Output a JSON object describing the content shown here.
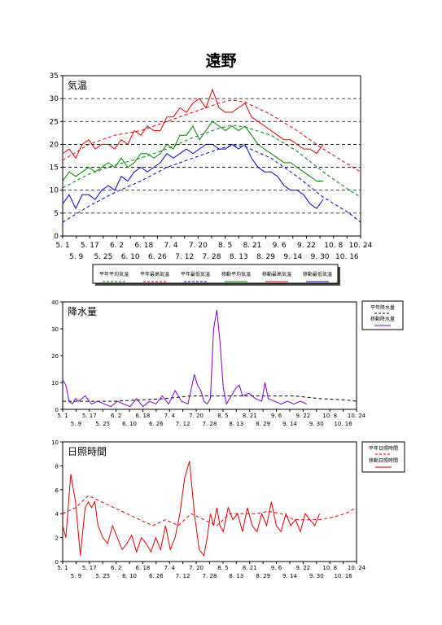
{
  "page_title": "遠野",
  "colors": {
    "normal_avg": "#008000",
    "normal_max": "#e00000",
    "normal_min": "#0000cc",
    "moving_avg": "#008000",
    "moving_max": "#e00000",
    "moving_min": "#0000cc",
    "precip_normal": "#000000",
    "precip_moving": "#7a00c8",
    "sun_normal": "#e00000",
    "sun_moving": "#e00000",
    "grid": "#000000"
  },
  "chart_data": [
    {
      "type": "line",
      "title": "気温",
      "ylim": [
        0,
        35
      ],
      "y_ticks": [
        "0",
        "5",
        "10",
        "15",
        "20",
        "25",
        "30",
        "35"
      ],
      "grid": "dashed horizontal",
      "x_ticks_row1": [
        "5. 1",
        "5. 17",
        "6. 2",
        "6. 18",
        "7. 4",
        "7. 20",
        "8. 5",
        "8. 21",
        "9. 6",
        "9. 22",
        "10. 8",
        "10. 24"
      ],
      "x_ticks_row2": [
        "5. 9",
        "5. 25",
        "6. 10",
        "6. 26",
        "7. 12",
        "7. 28",
        "8. 13",
        "8. 29",
        "9. 14",
        "9. 30",
        "10. 16"
      ],
      "legend_placement": "bottom",
      "series": [
        {
          "name": "平年平均気温",
          "style": "dashed",
          "x": [
            0,
            16,
            32,
            48,
            64,
            80,
            96,
            104,
            112,
            128,
            144,
            160,
            176,
            183
          ],
          "values": [
            10.5,
            13.5,
            15.5,
            17,
            19,
            21.5,
            23.5,
            24.2,
            23.8,
            22,
            18.5,
            14,
            10,
            8.5
          ]
        },
        {
          "name": "平年最高気温",
          "style": "dashed",
          "x": [
            0,
            16,
            32,
            48,
            64,
            80,
            96,
            104,
            112,
            128,
            144,
            160,
            176,
            183
          ],
          "values": [
            16.5,
            20,
            22,
            23,
            25,
            27,
            29,
            29.7,
            29.2,
            26.5,
            23,
            19,
            15.5,
            14
          ]
        },
        {
          "name": "平年最低気温",
          "style": "dashed",
          "x": [
            0,
            16,
            32,
            48,
            64,
            80,
            96,
            104,
            112,
            128,
            144,
            160,
            176,
            183
          ],
          "values": [
            3,
            6.5,
            9.5,
            12,
            15,
            17,
            19,
            19.8,
            19.5,
            17,
            13,
            8.5,
            5,
            3
          ]
        },
        {
          "name": "移動平均気温",
          "style": "solid",
          "x": [
            0,
            4,
            8,
            12,
            16,
            20,
            24,
            28,
            32,
            36,
            40,
            44,
            48,
            52,
            56,
            60,
            64,
            68,
            72,
            76,
            80,
            84,
            88,
            92,
            96,
            100,
            104,
            108,
            112,
            116,
            120,
            124,
            128,
            132,
            136,
            140,
            144,
            148,
            152,
            156,
            160
          ],
          "values": [
            12,
            14,
            13,
            14,
            15,
            14,
            15,
            16,
            15,
            17,
            15,
            16,
            18,
            18,
            17,
            18,
            20,
            19,
            22,
            22,
            24,
            21,
            23,
            25,
            24,
            23,
            24,
            23,
            24,
            22,
            20,
            19,
            18,
            17,
            16,
            16,
            15,
            14,
            13,
            12,
            12
          ]
        },
        {
          "name": "移動最高気温",
          "style": "solid",
          "x": [
            0,
            4,
            8,
            12,
            16,
            20,
            24,
            28,
            32,
            36,
            40,
            44,
            48,
            52,
            56,
            60,
            64,
            68,
            72,
            76,
            80,
            84,
            88,
            92,
            96,
            100,
            104,
            108,
            112,
            116,
            120,
            124,
            128,
            132,
            136,
            140,
            144,
            148,
            152,
            156,
            160
          ],
          "values": [
            18,
            19,
            17,
            20,
            21,
            19,
            20,
            20,
            19,
            21,
            20,
            23,
            22,
            24,
            23,
            23,
            26,
            26,
            28,
            27,
            29,
            30,
            28,
            32,
            28,
            27,
            27,
            28,
            29,
            26,
            25,
            24,
            23,
            22,
            21,
            21,
            20,
            19,
            19,
            18,
            20
          ]
        },
        {
          "name": "移動最低気温",
          "style": "solid",
          "x": [
            0,
            4,
            8,
            12,
            16,
            20,
            24,
            28,
            32,
            36,
            40,
            44,
            48,
            52,
            56,
            60,
            64,
            68,
            72,
            76,
            80,
            84,
            88,
            92,
            96,
            100,
            104,
            108,
            112,
            116,
            120,
            124,
            128,
            132,
            136,
            140,
            144,
            148,
            152,
            156,
            160
          ],
          "values": [
            7,
            9,
            6,
            9,
            9,
            8,
            10,
            11,
            10,
            13,
            12,
            14,
            15,
            14,
            15,
            16,
            18,
            17,
            18,
            19,
            18,
            19,
            20,
            20,
            19,
            19,
            20,
            19,
            20,
            17,
            15,
            14,
            14,
            13,
            11,
            10,
            10,
            9,
            7,
            6,
            8
          ]
        }
      ]
    },
    {
      "type": "line",
      "title": "降水量",
      "ylim": [
        0,
        40
      ],
      "y_ticks": [
        "0",
        "10",
        "20",
        "30",
        "40"
      ],
      "x_ticks_row1": [
        "5. 1",
        "5. 17",
        "6. 2",
        "6. 18",
        "7. 4",
        "7. 20",
        "8. 5",
        "8. 21",
        "9. 6",
        "9. 22",
        "10. 8",
        "10. 24"
      ],
      "x_ticks_row2": [
        "5. 9",
        "5. 25",
        "6. 10",
        "6. 26",
        "7. 12",
        "7. 28",
        "8. 13",
        "8. 29",
        "9. 14",
        "9. 30",
        "10. 16"
      ],
      "legend_placement": "right",
      "series": [
        {
          "name": "平年降水量",
          "style": "dashed",
          "x": [
            0,
            16,
            32,
            48,
            64,
            80,
            96,
            112,
            128,
            144,
            160,
            176,
            183
          ],
          "values": [
            3,
            3,
            3,
            3.5,
            4,
            5,
            5,
            5,
            5,
            5,
            4,
            3.5,
            3
          ]
        },
        {
          "name": "移動降水量",
          "style": "solid",
          "x": [
            0,
            2,
            4,
            6,
            8,
            10,
            14,
            18,
            22,
            26,
            30,
            34,
            38,
            42,
            46,
            50,
            54,
            58,
            62,
            66,
            70,
            74,
            78,
            82,
            84,
            86,
            88,
            90,
            92,
            94,
            96,
            98,
            100,
            102,
            104,
            106,
            108,
            110,
            112,
            116,
            120,
            124,
            126,
            128,
            132,
            136,
            140,
            144,
            148,
            152
          ],
          "values": [
            11,
            9,
            3,
            2,
            4,
            3,
            5,
            2,
            3,
            2,
            1,
            3,
            2,
            1,
            4,
            1,
            3,
            2,
            5,
            2,
            7,
            3,
            2,
            13,
            9,
            7,
            3,
            2,
            4,
            30,
            37,
            25,
            8,
            2,
            4,
            6,
            8,
            9,
            5,
            6,
            4,
            3,
            10,
            4,
            3,
            2,
            3,
            2,
            3,
            2
          ]
        }
      ]
    },
    {
      "type": "line",
      "title": "日照時間",
      "ylim": [
        0,
        10
      ],
      "y_ticks": [
        "0",
        "2",
        "4",
        "6",
        "8",
        "10"
      ],
      "x_ticks_row1": [
        "5. 1",
        "5. 17",
        "6. 2",
        "6. 18",
        "7. 4",
        "7. 20",
        "8. 5",
        "8. 21",
        "9. 6",
        "9. 22",
        "10. 8",
        "10. 24"
      ],
      "x_ticks_row2": [
        "5. 9",
        "5. 25",
        "6. 10",
        "6. 26",
        "7. 12",
        "7. 28",
        "8. 13",
        "8. 29",
        "9. 14",
        "9. 30",
        "10. 16"
      ],
      "legend_placement": "right",
      "series": [
        {
          "name": "平年日照時間",
          "style": "dashed",
          "x": [
            0,
            8,
            16,
            24,
            32,
            40,
            48,
            56,
            64,
            72,
            80,
            88,
            96,
            104,
            112,
            120,
            128,
            136,
            144,
            152,
            160,
            168,
            176,
            183
          ],
          "values": [
            4,
            4.5,
            5.5,
            5,
            4.5,
            4,
            3.5,
            3,
            3.5,
            3,
            4,
            3.5,
            3,
            4,
            4,
            4,
            4.2,
            4,
            3.5,
            3.5,
            3.5,
            3.7,
            4,
            4.5
          ]
        },
        {
          "name": "移動日照時間",
          "style": "solid",
          "x": [
            0,
            2,
            5,
            8,
            11,
            14,
            16,
            18,
            20,
            22,
            25,
            28,
            31,
            34,
            37,
            40,
            43,
            46,
            49,
            52,
            55,
            58,
            61,
            64,
            67,
            70,
            73,
            76,
            79,
            82,
            85,
            88,
            90,
            92,
            94,
            96,
            98,
            100,
            103,
            106,
            109,
            112,
            115,
            118,
            121,
            124,
            127,
            130,
            133,
            136,
            139,
            142,
            145,
            148,
            151,
            154,
            157,
            160
          ],
          "values": [
            3,
            2,
            7.3,
            5,
            0.5,
            4.5,
            5,
            4.5,
            5,
            3,
            2,
            1.5,
            3,
            2,
            1,
            1.5,
            2.2,
            0.8,
            2,
            1.5,
            0.8,
            2,
            1,
            3,
            1,
            2,
            4,
            7,
            8.4,
            4,
            1,
            0.5,
            2,
            4,
            3,
            4.5,
            3,
            2.5,
            4.5,
            3.5,
            4,
            2.5,
            4.5,
            3,
            2.5,
            4,
            3,
            5,
            3,
            2.5,
            4,
            3,
            3.5,
            2.5,
            4,
            3.5,
            3,
            4
          ]
        }
      ]
    }
  ]
}
